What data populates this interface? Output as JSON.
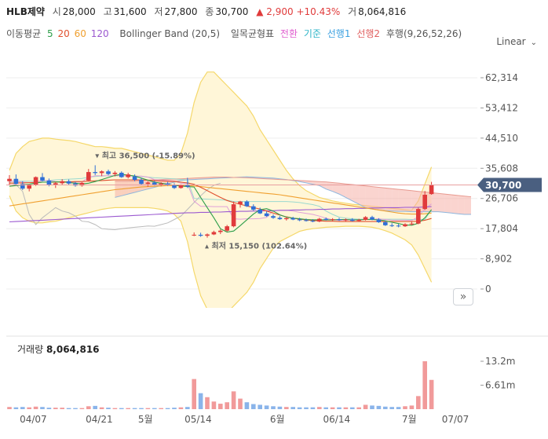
{
  "header": {
    "name": "HLB제약",
    "open_label": "시",
    "open": "28,000",
    "high_label": "고",
    "high": "31,600",
    "low_label": "저",
    "low": "27,800",
    "close_label": "종",
    "close": "30,700",
    "change": "▲ 2,900",
    "change_pct": "+10.43%",
    "volume_label": "거",
    "volume": "8,064,816"
  },
  "indicators": {
    "ma_label": "이동평균",
    "ma_5": "5",
    "ma_20": "20",
    "ma_60": "60",
    "ma_120": "120",
    "bollinger": "Bollinger Band (20,5)",
    "ichimoku_label": "일목균형표",
    "ichimoku_conversion": "전환",
    "ichimoku_base": "기준",
    "ichimoku_span1": "선행1",
    "ichimoku_span2": "선행2",
    "ichimoku_lagging": "후행(9,26,52,26)"
  },
  "scale_mode": "Linear",
  "volume_panel": {
    "label": "거래량",
    "value": "8,064,816"
  },
  "colors": {
    "up": "#e03b3b",
    "down": "#2f6fd6",
    "ma5": "#2e9e4a",
    "ma20": "#e0502e",
    "ma60": "#f0a030",
    "ma120": "#9b59d0",
    "bollinger": "#f5d86a",
    "span_up": "#f5b0a8",
    "span_down": "#a9d2f5",
    "current_price_bg": "#4a5f80"
  },
  "chart_data": {
    "type": "candlestick",
    "y_axis_ticks": [
      "62,314",
      "53,412",
      "44,510",
      "35,608",
      "26,706",
      "17,804",
      "8,902",
      "0"
    ],
    "y_tick_values": [
      62314,
      53412,
      44510,
      35608,
      26706,
      17804,
      8902,
      0
    ],
    "x_axis_labels": [
      "04/07",
      "04/21",
      "5월",
      "05/14",
      "6월",
      "06/14",
      "7월",
      "07/07"
    ],
    "x_label_index": [
      1,
      11,
      18,
      26,
      38,
      47,
      58,
      65
    ],
    "volume_ticks": [
      "13.2m",
      "6.61m"
    ],
    "volume_tick_values": [
      13200000,
      6610000
    ],
    "current_price": "30,700",
    "current_price_value": 30700,
    "max_annotation": "최고 36,500 (-15.89%)",
    "max_value": 36500,
    "max_index": 13,
    "min_annotation": "최저 15,150 (102.64%)",
    "min_value": 15150,
    "min_index": 30,
    "candles": [
      {
        "o": 31800,
        "h": 33600,
        "l": 30800,
        "c": 32500,
        "v": 0.6
      },
      {
        "o": 32500,
        "h": 33800,
        "l": 30500,
        "c": 31000,
        "v": 0.5
      },
      {
        "o": 31000,
        "h": 31800,
        "l": 29200,
        "c": 29600,
        "v": 0.6
      },
      {
        "o": 29600,
        "h": 31000,
        "l": 28800,
        "c": 30600,
        "v": 0.5
      },
      {
        "o": 30600,
        "h": 33200,
        "l": 30400,
        "c": 33000,
        "v": 0.7
      },
      {
        "o": 33000,
        "h": 34200,
        "l": 31800,
        "c": 32000,
        "v": 0.6
      },
      {
        "o": 32000,
        "h": 32600,
        "l": 30300,
        "c": 30800,
        "v": 0.4
      },
      {
        "o": 30800,
        "h": 31600,
        "l": 29800,
        "c": 31200,
        "v": 0.4
      },
      {
        "o": 31200,
        "h": 32400,
        "l": 30600,
        "c": 31800,
        "v": 0.4
      },
      {
        "o": 31800,
        "h": 32300,
        "l": 30800,
        "c": 31100,
        "v": 0.3
      },
      {
        "o": 31100,
        "h": 31600,
        "l": 30200,
        "c": 30500,
        "v": 0.3
      },
      {
        "o": 30500,
        "h": 31500,
        "l": 30200,
        "c": 31300,
        "v": 0.3
      },
      {
        "o": 32000,
        "h": 35400,
        "l": 31800,
        "c": 34500,
        "v": 0.8
      },
      {
        "o": 34500,
        "h": 36500,
        "l": 33600,
        "c": 34200,
        "v": 0.9
      },
      {
        "o": 34200,
        "h": 35000,
        "l": 33300,
        "c": 34700,
        "v": 0.5
      },
      {
        "o": 34700,
        "h": 35200,
        "l": 33600,
        "c": 33900,
        "v": 0.4
      },
      {
        "o": 33900,
        "h": 34800,
        "l": 33200,
        "c": 34300,
        "v": 0.3
      },
      {
        "o": 34300,
        "h": 34700,
        "l": 32800,
        "c": 33000,
        "v": 0.3
      },
      {
        "o": 33000,
        "h": 34300,
        "l": 32600,
        "c": 33800,
        "v": 0.3
      },
      {
        "o": 33200,
        "h": 33800,
        "l": 31800,
        "c": 32200,
        "v": 0.3
      },
      {
        "o": 32200,
        "h": 32800,
        "l": 30700,
        "c": 31000,
        "v": 0.3
      },
      {
        "o": 31000,
        "h": 31800,
        "l": 30200,
        "c": 31400,
        "v": 0.3
      },
      {
        "o": 31400,
        "h": 31900,
        "l": 30500,
        "c": 30800,
        "v": 0.3
      },
      {
        "o": 30800,
        "h": 31500,
        "l": 30300,
        "c": 31100,
        "v": 0.3
      },
      {
        "o": 31100,
        "h": 31600,
        "l": 30400,
        "c": 30600,
        "v": 0.3
      },
      {
        "o": 30600,
        "h": 31200,
        "l": 29500,
        "c": 29800,
        "v": 0.4
      },
      {
        "o": 29800,
        "h": 30900,
        "l": 29600,
        "c": 30600,
        "v": 0.5
      },
      {
        "o": 30600,
        "h": 32800,
        "l": 29800,
        "c": 30200,
        "v": 0.6
      },
      {
        "o": 15900,
        "h": 16700,
        "l": 15600,
        "c": 16000,
        "v": 8.3
      },
      {
        "o": 16000,
        "h": 16600,
        "l": 15400,
        "c": 15700,
        "v": 4.4
      },
      {
        "o": 15700,
        "h": 16400,
        "l": 15150,
        "c": 16100,
        "v": 3.3
      },
      {
        "o": 16100,
        "h": 17200,
        "l": 15900,
        "c": 16800,
        "v": 2.1
      },
      {
        "o": 16800,
        "h": 17600,
        "l": 16200,
        "c": 17200,
        "v": 1.5
      },
      {
        "o": 17200,
        "h": 18900,
        "l": 16900,
        "c": 18500,
        "v": 1.9
      },
      {
        "o": 18500,
        "h": 25800,
        "l": 18200,
        "c": 25000,
        "v": 4.9
      },
      {
        "o": 25000,
        "h": 26000,
        "l": 24000,
        "c": 25800,
        "v": 2.9
      },
      {
        "o": 25800,
        "h": 26200,
        "l": 24200,
        "c": 24400,
        "v": 1.9
      },
      {
        "o": 24400,
        "h": 25000,
        "l": 23100,
        "c": 23400,
        "v": 1.4
      },
      {
        "o": 23400,
        "h": 24000,
        "l": 22100,
        "c": 22300,
        "v": 1.2
      },
      {
        "o": 22300,
        "h": 22900,
        "l": 21300,
        "c": 21500,
        "v": 1.0
      },
      {
        "o": 21500,
        "h": 22000,
        "l": 20700,
        "c": 21000,
        "v": 0.8
      },
      {
        "o": 21000,
        "h": 21500,
        "l": 20400,
        "c": 20600,
        "v": 0.7
      },
      {
        "o": 20600,
        "h": 21200,
        "l": 20200,
        "c": 20900,
        "v": 0.6
      },
      {
        "o": 20900,
        "h": 21300,
        "l": 20300,
        "c": 20500,
        "v": 0.6
      },
      {
        "o": 20500,
        "h": 21000,
        "l": 20000,
        "c": 20300,
        "v": 0.5
      },
      {
        "o": 20300,
        "h": 20800,
        "l": 19900,
        "c": 20100,
        "v": 0.5
      },
      {
        "o": 20100,
        "h": 20600,
        "l": 19700,
        "c": 19900,
        "v": 0.5
      },
      {
        "o": 19900,
        "h": 21000,
        "l": 19700,
        "c": 20700,
        "v": 0.6
      },
      {
        "o": 20700,
        "h": 21100,
        "l": 20200,
        "c": 20400,
        "v": 0.5
      },
      {
        "o": 20400,
        "h": 20900,
        "l": 20000,
        "c": 20600,
        "v": 0.5
      },
      {
        "o": 20600,
        "h": 21000,
        "l": 20100,
        "c": 20300,
        "v": 0.5
      },
      {
        "o": 20300,
        "h": 20800,
        "l": 19900,
        "c": 20500,
        "v": 0.5
      },
      {
        "o": 20500,
        "h": 20900,
        "l": 19900,
        "c": 20100,
        "v": 0.5
      },
      {
        "o": 20100,
        "h": 20700,
        "l": 19800,
        "c": 20400,
        "v": 0.5
      },
      {
        "o": 20400,
        "h": 21500,
        "l": 20200,
        "c": 21200,
        "v": 1.2
      },
      {
        "o": 21200,
        "h": 21600,
        "l": 20300,
        "c": 20500,
        "v": 1.0
      },
      {
        "o": 20500,
        "h": 20900,
        "l": 19500,
        "c": 19700,
        "v": 0.9
      },
      {
        "o": 19700,
        "h": 20200,
        "l": 18600,
        "c": 18800,
        "v": 0.7
      },
      {
        "o": 18800,
        "h": 19400,
        "l": 18300,
        "c": 18700,
        "v": 0.6
      },
      {
        "o": 18700,
        "h": 19200,
        "l": 18200,
        "c": 18500,
        "v": 0.6
      },
      {
        "o": 18500,
        "h": 19400,
        "l": 18300,
        "c": 19100,
        "v": 0.8
      },
      {
        "o": 19100,
        "h": 19800,
        "l": 18800,
        "c": 19300,
        "v": 1.0
      },
      {
        "o": 19300,
        "h": 24000,
        "l": 19100,
        "c": 23600,
        "v": 3.6
      },
      {
        "o": 23600,
        "h": 28900,
        "l": 23300,
        "c": 27800,
        "v": 13.2
      },
      {
        "o": 28000,
        "h": 31600,
        "l": 27800,
        "c": 30700,
        "v": 8.06
      }
    ],
    "ma5": [
      30300,
      30500,
      30700,
      30900,
      31300,
      31500,
      31500,
      31600,
      31600,
      31400,
      31200,
      31000,
      31200,
      31700,
      32300,
      32900,
      33500,
      33800,
      33600,
      33300,
      32700,
      32100,
      31500,
      31200,
      30900,
      30600,
      30400,
      30200,
      30100,
      27000,
      24000,
      21000,
      17800,
      16800,
      17100,
      18700,
      20400,
      22100,
      23400,
      23700,
      23000,
      21900,
      21200,
      20900,
      20700,
      20500,
      20400,
      20400,
      20400,
      20400,
      20500,
      20500,
      20400,
      20400,
      20500,
      20500,
      20400,
      20100,
      19700,
      19300,
      18900,
      18800,
      19400,
      21000,
      23400
    ],
    "ma20": [
      31200,
      31300,
      31300,
      31400,
      31400,
      31500,
      31500,
      31500,
      31600,
      31600,
      31700,
      31700,
      31800,
      31900,
      32000,
      32100,
      32200,
      32200,
      32200,
      32200,
      32200,
      32100,
      32000,
      31900,
      31800,
      31700,
      31500,
      31300,
      30900,
      30000,
      29000,
      28000,
      27000,
      26100,
      25500,
      25000,
      24500,
      24000,
      23600,
      23000,
      22400,
      21800,
      21300,
      20900,
      20600,
      20400,
      20200,
      20100,
      20000,
      20000,
      19900,
      19900,
      19900,
      19900,
      19900,
      19900,
      19900,
      19900,
      19900,
      19900,
      19900,
      19900,
      20000,
      20300,
      20800
    ],
    "ma60": [
      24500,
      24800,
      25100,
      25400,
      25700,
      26000,
      26300,
      26600,
      26900,
      27200,
      27500,
      27800,
      28100,
      28400,
      28700,
      29000,
      29300,
      29500,
      29700,
      29900,
      30100,
      30200,
      30300,
      30400,
      30500,
      30500,
      30500,
      30500,
      30400,
      30200,
      30000,
      29800,
      29600,
      29400,
      29200,
      29000,
      28800,
      28600,
      28400,
      28200,
      28000,
      27800,
      27500,
      27200,
      26900,
      26600,
      26300,
      26000,
      25700,
      25400,
      25100,
      24800,
      24500,
      24200,
      23900,
      23600,
      23300,
      23000,
      22700,
      22400,
      22200,
      22100,
      22100,
      22200,
      22400
    ],
    "ma120": [
      19800,
      19900,
      20000,
      20100,
      20200,
      20300,
      20400,
      20500,
      20600,
      20700,
      20800,
      20900,
      21000,
      21100,
      21200,
      21300,
      21400,
      21500,
      21600,
      21700,
      21800,
      21900,
      22000,
      22100,
      22200,
      22300,
      22400,
      22500,
      22500,
      22600,
      22600,
      22700,
      22700,
      22800,
      22800,
      22900,
      22900,
      23000,
      23000,
      23100,
      23100,
      23200,
      23200,
      23300,
      23300,
      23400,
      23400,
      23500,
      23500,
      23600,
      23600,
      23700,
      23700,
      23800,
      23800,
      23900,
      23900,
      24000,
      24000,
      24000,
      24100,
      24100,
      24100,
      24200,
      24300
    ],
    "bb_upper": [
      35000,
      40000,
      42000,
      43500,
      44000,
      44500,
      44500,
      44200,
      44000,
      43800,
      43500,
      43000,
      42500,
      42000,
      42000,
      41800,
      41500,
      41500,
      41000,
      40500,
      40000,
      39500,
      39000,
      38500,
      38000,
      38000,
      40000,
      46000,
      55000,
      61000,
      64000,
      64000,
      62000,
      60000,
      58000,
      56000,
      54000,
      51000,
      47000,
      44000,
      41000,
      38000,
      35000,
      32500,
      30500,
      29000,
      28000,
      27000,
      26500,
      26000,
      25600,
      25300,
      25000,
      24800,
      24600,
      24400,
      24200,
      24000,
      23800,
      23600,
      23400,
      23200,
      26000,
      31000,
      36000
    ],
    "bb_lower": [
      27500,
      23000,
      21000,
      20000,
      19500,
      19500,
      19800,
      20000,
      20500,
      21000,
      21500,
      22000,
      22500,
      23000,
      23500,
      23800,
      24000,
      24000,
      24000,
      24000,
      24000,
      24000,
      23800,
      23500,
      23000,
      22000,
      20000,
      14000,
      5000,
      -2000,
      -6000,
      -8000,
      -8000,
      -7000,
      -5000,
      -3000,
      -1000,
      2000,
      6000,
      9000,
      12000,
      14000,
      15000,
      16000,
      17000,
      17500,
      17800,
      18000,
      18200,
      18300,
      18400,
      18500,
      18500,
      18500,
      18400,
      18200,
      17800,
      17200,
      16500,
      15500,
      14500,
      13000,
      10000,
      6000,
      2000
    ],
    "conversion": [
      31800,
      31800,
      31500,
      31400,
      31500,
      32000,
      32000,
      31700,
      31500,
      31500,
      31500,
      31600,
      32900,
      33400,
      33400,
      33400,
      33400,
      33400,
      33300,
      33300,
      33300,
      33000,
      32300,
      32100,
      32000,
      31800,
      31200,
      31100,
      25900,
      24400,
      24400,
      24300,
      24300,
      24300,
      20700,
      20600,
      20700,
      20700,
      20800,
      21100,
      23100,
      23200,
      23200,
      23000,
      22600,
      22300,
      22000,
      21500,
      20900,
      20400,
      20300,
      20300,
      20400,
      20400,
      20500,
      20600,
      20700,
      20500,
      20300,
      20300,
      20300,
      20200,
      21300,
      23600,
      25100
    ],
    "base": [
      31800,
      31800,
      31800,
      31800,
      31800,
      31800,
      32000,
      32200,
      32300,
      32400,
      32500,
      32600,
      33000,
      33200,
      33300,
      33400,
      33400,
      33400,
      33400,
      33300,
      33200,
      33000,
      32800,
      32700,
      32600,
      32500,
      32300,
      32200,
      26700,
      26600,
      26500,
      26400,
      26300,
      26200,
      25800,
      25800,
      25800,
      25800,
      25800,
      25800,
      25800,
      25800,
      25800,
      25700,
      25500,
      25200,
      24900,
      24400,
      23000,
      22000,
      21200,
      20900,
      20700,
      20600,
      20600,
      20600,
      20600,
      20600,
      20600,
      20600,
      20600,
      20500,
      20500,
      20500,
      23400
    ],
    "span1_x_start": 16,
    "span1": [
      27000,
      27500,
      28000,
      28500,
      29000,
      29500,
      30000,
      30500,
      31000,
      31500,
      32000,
      32200,
      32300,
      32400,
      32500,
      32600,
      32700,
      32800,
      32900,
      33000,
      33100,
      33000,
      32900,
      32800,
      32700,
      32500,
      32300,
      32000,
      31700,
      31300,
      30900,
      30500,
      29500,
      28800,
      28000,
      27000,
      26000,
      25000,
      24000,
      23600,
      23300,
      23100,
      23000,
      22900,
      22900,
      22800,
      22800,
      22800,
      22800,
      22800,
      22600,
      22400,
      22200,
      22000,
      22000
    ],
    "span2": [
      31800,
      31800,
      31800,
      31900,
      32000,
      32100,
      32200,
      32300,
      32400,
      32500,
      32500,
      32600,
      32700,
      32800,
      32900,
      33000,
      33000,
      33000,
      32900,
      32900,
      32800,
      32700,
      32600,
      32500,
      32400,
      32300,
      32200,
      32100,
      32000,
      31900,
      31800,
      31700,
      31600,
      31400,
      31200,
      31000,
      30800,
      30600,
      30400,
      30200,
      30000,
      29800,
      29600,
      29400,
      29200,
      29000,
      28800,
      28600,
      28400,
      28200,
      28000,
      27800,
      27600,
      27400,
      27200
    ],
    "lagging": [
      31500,
      30800,
      28800,
      22000,
      19000,
      21000,
      22500,
      24000,
      23000,
      22500,
      21500,
      20000,
      19800,
      19000,
      17800,
      17600,
      17500,
      17800,
      18000,
      18200,
      18400,
      18600,
      18500,
      19000,
      19500,
      20500,
      21500,
      23500,
      25500,
      27500,
      29300,
      30600,
      31200
    ],
    "ylim": [
      -8000,
      68000
    ]
  }
}
